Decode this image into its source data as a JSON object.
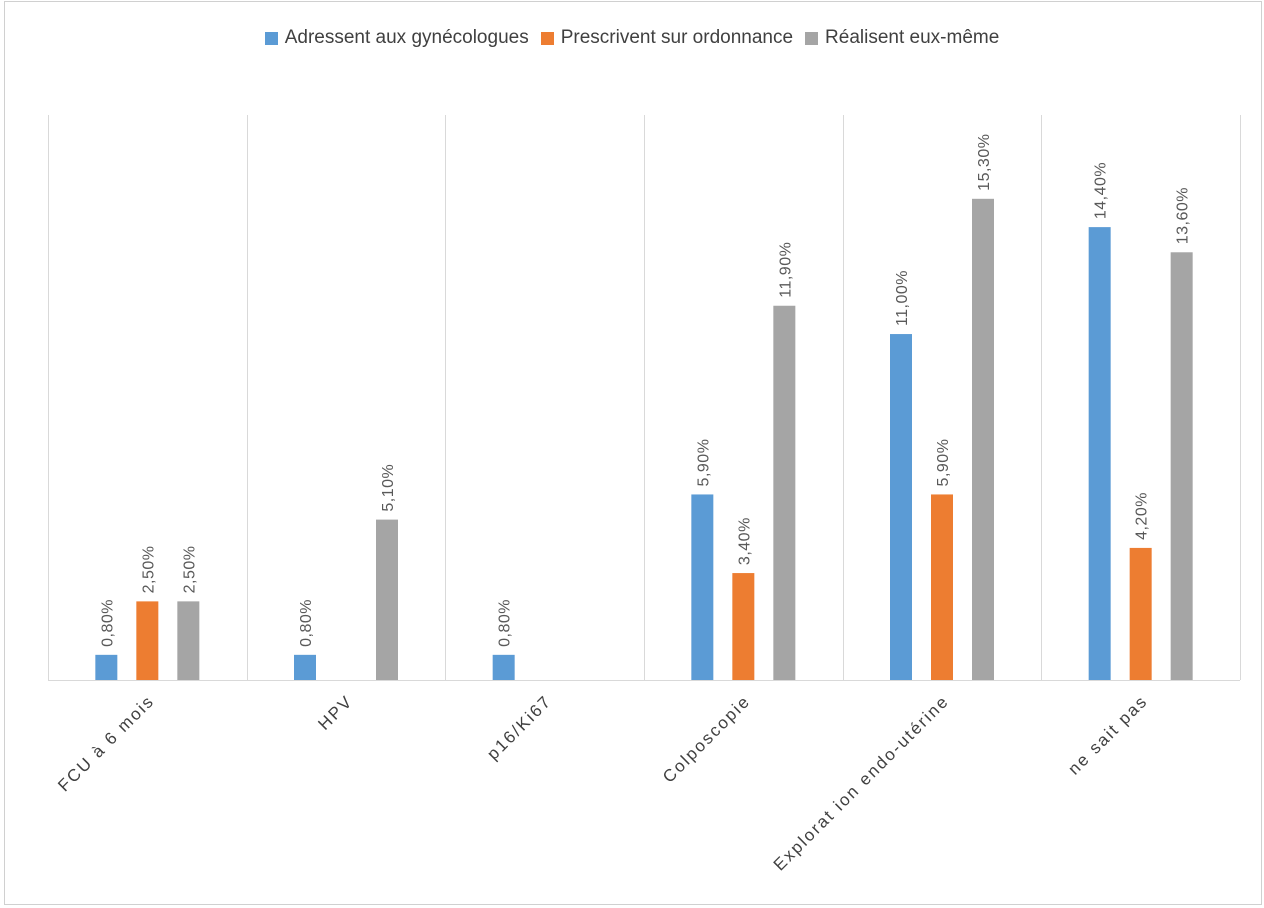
{
  "chart_data": {
    "type": "bar",
    "title": "",
    "xlabel": "",
    "ylabel": "",
    "categories": [
      "FCU à 6 mois",
      "HPV",
      "p16/Ki67",
      "Colposcopie",
      "Explorat ion endo-utérine",
      "ne sait pas"
    ],
    "series": [
      {
        "name": "Adressent aux gynécologues",
        "color": "#5B9BD5",
        "values": [
          0.8,
          0.8,
          0.8,
          5.9,
          11.0,
          14.4
        ],
        "labels": [
          "0,80%",
          "0,80%",
          "0,80%",
          "5,90%",
          "11,00%",
          "14,40%"
        ]
      },
      {
        "name": "Prescrivent sur ordonnance",
        "color": "#ED7D31",
        "values": [
          2.5,
          null,
          null,
          3.4,
          5.9,
          4.2
        ],
        "labels": [
          "2,50%",
          null,
          null,
          "3,40%",
          "5,90%",
          "4,20%"
        ]
      },
      {
        "name": "Réalisent eux-même",
        "color": "#A5A5A5",
        "values": [
          2.5,
          5.1,
          null,
          11.9,
          15.3,
          13.6
        ],
        "labels": [
          "2,50%",
          "5,10%",
          null,
          "11,90%",
          "15,30%",
          "13,60%"
        ]
      }
    ],
    "ylim": [
      0,
      18
    ],
    "legend_position": "top-center",
    "grid": "vertical category separators"
  }
}
